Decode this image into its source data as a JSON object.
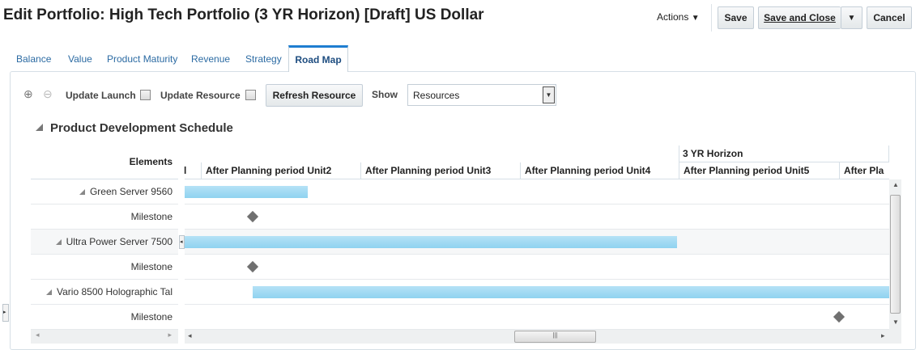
{
  "header": {
    "title": "Edit Portfolio: High Tech Portfolio (3 YR Horizon) [Draft] US Dollar",
    "actions_label": "Actions",
    "save_label": "Save",
    "save_close_label": "Save and Close",
    "cancel_label": "Cancel"
  },
  "tabs": [
    {
      "label": "Balance"
    },
    {
      "label": "Value"
    },
    {
      "label": "Product Maturity"
    },
    {
      "label": "Revenue"
    },
    {
      "label": "Strategy"
    },
    {
      "label": "Road Map",
      "active": true
    }
  ],
  "toolbar": {
    "update_launch": "Update Launch",
    "update_launch_checked": false,
    "update_resource": "Update Resource",
    "update_resource_checked": false,
    "refresh_label": "Refresh Resource",
    "show_label": "Show",
    "show_value": "Resources"
  },
  "section": {
    "title": "Product Development Schedule"
  },
  "gantt": {
    "elements_header": "Elements",
    "group_header": "3 YR Horizon",
    "columns": [
      "l",
      "After Planning period Unit2",
      "After Planning period Unit3",
      "After Planning period Unit4",
      "After Planning period Unit5",
      "After Pla"
    ],
    "rows": [
      {
        "label": "Green Server 9560",
        "type": "task"
      },
      {
        "label": "Milestone",
        "type": "milestone"
      },
      {
        "label": "Ultra Power Server 7500",
        "type": "task"
      },
      {
        "label": "Milestone",
        "type": "milestone"
      },
      {
        "label": "Vario 8500 Holographic Tal",
        "type": "task"
      },
      {
        "label": "Milestone",
        "type": "milestone"
      }
    ],
    "bar_color": "#9fd9f2",
    "milestone_color": "#707070"
  }
}
